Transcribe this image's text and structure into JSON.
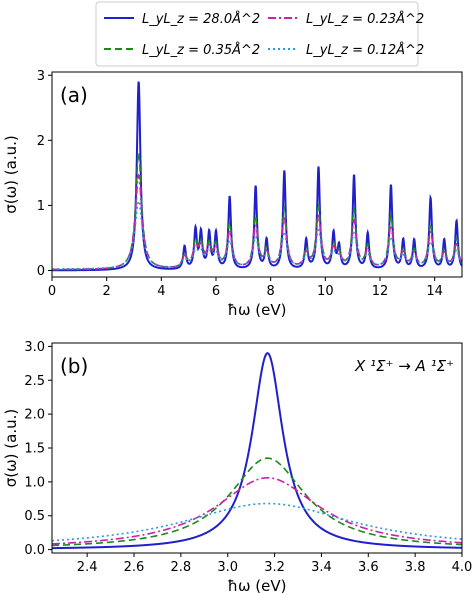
{
  "legend": {
    "entries": [
      {
        "label": "L_yL_z = 28.0Å^2",
        "color": "#1f1fcc",
        "dash": "solid"
      },
      {
        "label": "L_yL_z = 0.35Å^2",
        "color": "#1a8a1a",
        "dash": "dashed"
      },
      {
        "label": "L_yL_z = 0.23Å^2",
        "color": "#cc1fb0",
        "dash": "dashdot"
      },
      {
        "label": "L_yL_z = 0.12Å^2",
        "color": "#2a9ad8",
        "dash": "dotted"
      }
    ],
    "placement": "top-center"
  },
  "chart_data": [
    {
      "type": "line",
      "panel_label": "(a)",
      "xlabel": "ħω (eV)",
      "ylabel": "σ(ω)  (a.u.)",
      "xlim": [
        0,
        15
      ],
      "ylim": [
        -0.1,
        3.05
      ],
      "xticks": [
        0,
        2,
        4,
        6,
        8,
        10,
        12,
        14
      ],
      "yticks": [
        0,
        1,
        2,
        3
      ],
      "grid": false,
      "series_scale": [
        1.0,
        0.62,
        0.5,
        0.36
      ],
      "series_offset": [
        0.0,
        0.01,
        0.012,
        0.02
      ],
      "peaks": [
        {
          "center": 3.17,
          "height": 2.9,
          "width": 0.08
        },
        {
          "center": 4.85,
          "height": 0.35,
          "width": 0.06
        },
        {
          "center": 5.25,
          "height": 0.6,
          "width": 0.06
        },
        {
          "center": 5.45,
          "height": 0.55,
          "width": 0.06
        },
        {
          "center": 5.75,
          "height": 0.55,
          "width": 0.06
        },
        {
          "center": 6.0,
          "height": 0.55,
          "width": 0.06
        },
        {
          "center": 6.5,
          "height": 1.12,
          "width": 0.06
        },
        {
          "center": 7.45,
          "height": 1.28,
          "width": 0.06
        },
        {
          "center": 7.85,
          "height": 0.45,
          "width": 0.06
        },
        {
          "center": 8.5,
          "height": 1.52,
          "width": 0.06
        },
        {
          "center": 9.3,
          "height": 0.45,
          "width": 0.06
        },
        {
          "center": 9.75,
          "height": 1.57,
          "width": 0.06
        },
        {
          "center": 10.3,
          "height": 0.55,
          "width": 0.06
        },
        {
          "center": 10.5,
          "height": 0.35,
          "width": 0.06
        },
        {
          "center": 11.05,
          "height": 1.45,
          "width": 0.06
        },
        {
          "center": 11.55,
          "height": 0.55,
          "width": 0.06
        },
        {
          "center": 12.4,
          "height": 1.3,
          "width": 0.06
        },
        {
          "center": 12.85,
          "height": 0.45,
          "width": 0.06
        },
        {
          "center": 13.25,
          "height": 0.45,
          "width": 0.06
        },
        {
          "center": 13.85,
          "height": 1.1,
          "width": 0.06
        },
        {
          "center": 14.35,
          "height": 0.45,
          "width": 0.06
        },
        {
          "center": 14.8,
          "height": 0.75,
          "width": 0.06
        }
      ]
    },
    {
      "type": "line",
      "panel_label": "(b)",
      "annotation": "X ¹Σ⁺ → A ¹Σ⁺",
      "xlabel": "ħω (eV)",
      "ylabel": "σ(ω)  (a.u.)",
      "xlim": [
        2.25,
        4.0
      ],
      "ylim": [
        -0.05,
        3.05
      ],
      "xticks": [
        2.4,
        2.6,
        2.8,
        3.0,
        3.2,
        3.4,
        3.6,
        3.8,
        4.0
      ],
      "yticks": [
        0.0,
        0.5,
        1.0,
        1.5,
        2.0,
        2.5,
        3.0
      ],
      "grid": false,
      "center": 3.17,
      "peak_values": [
        2.9,
        1.35,
        1.06,
        0.68
      ],
      "half_widths": [
        0.08,
        0.2,
        0.27,
        0.45
      ]
    }
  ]
}
